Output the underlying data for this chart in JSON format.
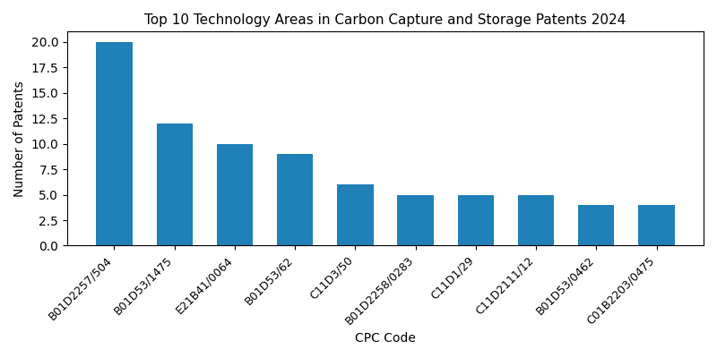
{
  "title": "Top 10 Technology Areas in Carbon Capture and Storage Patents 2024",
  "xlabel": "CPC Code",
  "ylabel": "Number of Patents",
  "categories": [
    "B01D2257/504",
    "B01D53/1475",
    "E21B41/0064",
    "B01D53/62",
    "C11D3/50",
    "B01D2258/0283",
    "C11D1/29",
    "C11D2111/12",
    "B01D53/0462",
    "C01B2203/0475"
  ],
  "values": [
    20,
    12,
    10,
    9,
    6,
    5,
    5,
    5,
    4,
    4
  ],
  "bar_color": "#2080b8",
  "ylim": [
    0,
    21
  ],
  "yticks": [
    0.0,
    2.5,
    5.0,
    7.5,
    10.0,
    12.5,
    15.0,
    17.5,
    20.0
  ],
  "figsize": [
    8.0,
    4.0
  ],
  "dpi": 100,
  "title_fontsize": 11,
  "axis_label_fontsize": 10,
  "tick_fontsize": 9
}
